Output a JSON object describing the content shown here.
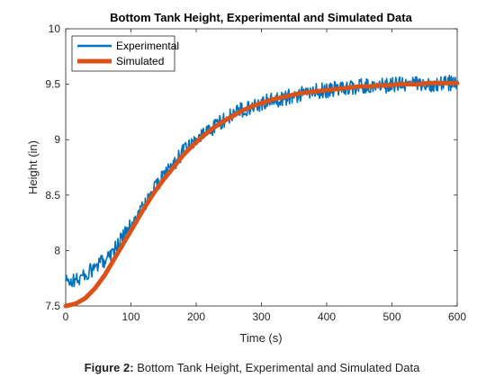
{
  "caption": {
    "label": "Figure 2:",
    "text": "Bottom Tank Height, Experimental and Simulated Data"
  },
  "chart_data": {
    "type": "line",
    "title": "Bottom Tank Height, Experimental and Simulated Data",
    "xlabel": "Time (s)",
    "ylabel": "Height (in)",
    "xlim": [
      0,
      600
    ],
    "ylim": [
      7.5,
      10
    ],
    "x_ticks": [
      0,
      100,
      200,
      300,
      400,
      500,
      600
    ],
    "y_ticks": [
      7.5,
      8,
      8.5,
      9,
      9.5,
      10
    ],
    "y_tick_labels": [
      "7.5",
      "8",
      "8.5",
      "9",
      "9.5",
      "10"
    ],
    "grid": false,
    "legend_position": "top-left",
    "series": [
      {
        "name": "Experimental",
        "color": "#0072BD",
        "style": "noisy",
        "x": [
          0,
          15,
          30,
          45,
          60,
          75,
          90,
          105,
          120,
          135,
          150,
          165,
          180,
          195,
          210,
          225,
          240,
          255,
          270,
          285,
          300,
          315,
          330,
          345,
          360,
          375,
          390,
          405,
          420,
          435,
          450,
          465,
          480,
          495,
          510,
          525,
          540,
          555,
          570,
          585,
          600
        ],
        "y": [
          7.72,
          7.73,
          7.78,
          7.84,
          7.92,
          8.02,
          8.14,
          8.27,
          8.41,
          8.55,
          8.67,
          8.78,
          8.89,
          8.97,
          9.05,
          9.11,
          9.17,
          9.22,
          9.27,
          9.3,
          9.33,
          9.35,
          9.37,
          9.39,
          9.41,
          9.43,
          9.44,
          9.45,
          9.46,
          9.47,
          9.48,
          9.48,
          9.49,
          9.49,
          9.5,
          9.5,
          9.5,
          9.5,
          9.51,
          9.51,
          9.51
        ],
        "noise_amplitude": 0.07
      },
      {
        "name": "Simulated",
        "color": "#D95319",
        "style": "thick",
        "x": [
          0,
          15,
          30,
          45,
          60,
          75,
          90,
          105,
          120,
          135,
          150,
          165,
          180,
          195,
          210,
          225,
          240,
          255,
          270,
          285,
          300,
          315,
          330,
          345,
          360,
          375,
          390,
          405,
          420,
          435,
          450,
          465,
          480,
          495,
          510,
          525,
          540,
          555,
          570,
          585,
          600
        ],
        "y": [
          7.5,
          7.52,
          7.57,
          7.66,
          7.78,
          7.93,
          8.08,
          8.23,
          8.38,
          8.52,
          8.64,
          8.75,
          8.86,
          8.95,
          9.03,
          9.1,
          9.16,
          9.21,
          9.26,
          9.3,
          9.33,
          9.36,
          9.38,
          9.4,
          9.42,
          9.43,
          9.44,
          9.45,
          9.46,
          9.47,
          9.48,
          9.48,
          9.49,
          9.49,
          9.5,
          9.5,
          9.5,
          9.51,
          9.51,
          9.51,
          9.51
        ]
      }
    ]
  }
}
